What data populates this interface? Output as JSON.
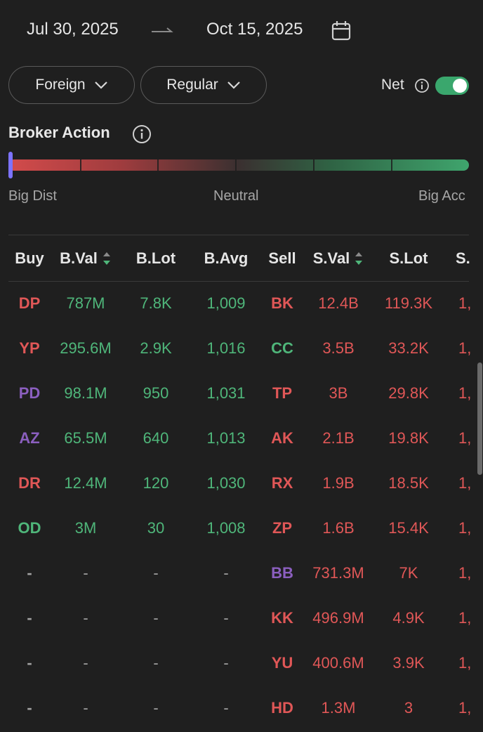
{
  "date_range": {
    "start": "Jul 30, 2025",
    "end": "Oct 15, 2025"
  },
  "filters": {
    "investor_type": "Foreign",
    "market": "Regular",
    "net_label": "Net",
    "net_enabled": true
  },
  "broker_action": {
    "title": "Broker Action",
    "scale_left": "Big Dist",
    "scale_middle": "Neutral",
    "scale_right": "Big Acc",
    "colors": {
      "dist": "#d34b4b",
      "acc": "#3fa56d",
      "marker": "#7d73ff"
    }
  },
  "table": {
    "headers": {
      "buy": "Buy",
      "b_val": "B.Val",
      "b_lot": "B.Lot",
      "b_avg": "B.Avg",
      "sell": "Sell",
      "s_val": "S.Val",
      "s_lot": "S.Lot",
      "s_avg": "S."
    },
    "rows": [
      {
        "buy": "DP",
        "buy_color": "red",
        "b_val": "787M",
        "b_lot": "7.8K",
        "b_avg": "1,009",
        "sell": "BK",
        "sell_color": "red",
        "s_val": "12.4B",
        "s_lot": "119.3K",
        "s_avg": "1,"
      },
      {
        "buy": "YP",
        "buy_color": "red",
        "b_val": "295.6M",
        "b_lot": "2.9K",
        "b_avg": "1,016",
        "sell": "CC",
        "sell_color": "green",
        "s_val": "3.5B",
        "s_lot": "33.2K",
        "s_avg": "1,"
      },
      {
        "buy": "PD",
        "buy_color": "purple",
        "b_val": "98.1M",
        "b_lot": "950",
        "b_avg": "1,031",
        "sell": "TP",
        "sell_color": "red",
        "s_val": "3B",
        "s_lot": "29.8K",
        "s_avg": "1,"
      },
      {
        "buy": "AZ",
        "buy_color": "purple",
        "b_val": "65.5M",
        "b_lot": "640",
        "b_avg": "1,013",
        "sell": "AK",
        "sell_color": "red",
        "s_val": "2.1B",
        "s_lot": "19.8K",
        "s_avg": "1,"
      },
      {
        "buy": "DR",
        "buy_color": "red",
        "b_val": "12.4M",
        "b_lot": "120",
        "b_avg": "1,030",
        "sell": "RX",
        "sell_color": "red",
        "s_val": "1.9B",
        "s_lot": "18.5K",
        "s_avg": "1,"
      },
      {
        "buy": "OD",
        "buy_color": "green",
        "b_val": "3M",
        "b_lot": "30",
        "b_avg": "1,008",
        "sell": "ZP",
        "sell_color": "red",
        "s_val": "1.6B",
        "s_lot": "15.4K",
        "s_avg": "1,"
      },
      {
        "buy": "-",
        "buy_color": "dash",
        "b_val": "-",
        "b_lot": "-",
        "b_avg": "-",
        "sell": "BB",
        "sell_color": "purple",
        "s_val": "731.3M",
        "s_lot": "7K",
        "s_avg": "1,"
      },
      {
        "buy": "-",
        "buy_color": "dash",
        "b_val": "-",
        "b_lot": "-",
        "b_avg": "-",
        "sell": "KK",
        "sell_color": "red",
        "s_val": "496.9M",
        "s_lot": "4.9K",
        "s_avg": "1,"
      },
      {
        "buy": "-",
        "buy_color": "dash",
        "b_val": "-",
        "b_lot": "-",
        "b_avg": "-",
        "sell": "YU",
        "sell_color": "red",
        "s_val": "400.6M",
        "s_lot": "3.9K",
        "s_avg": "1,"
      },
      {
        "buy": "-",
        "buy_color": "dash",
        "b_val": "-",
        "b_lot": "-",
        "b_avg": "-",
        "sell": "HD",
        "sell_color": "red",
        "s_val": "1.3M",
        "s_lot": "3",
        "s_avg": "1,"
      }
    ]
  }
}
